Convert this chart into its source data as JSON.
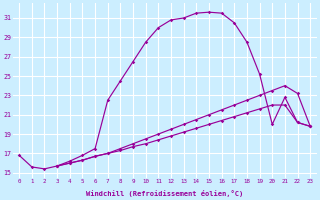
{
  "xlabel": "Windchill (Refroidissement éolien,°C)",
  "bg_color": "#cceeff",
  "grid_color": "#ffffff",
  "line_color": "#990099",
  "xlim": [
    -0.5,
    23.5
  ],
  "ylim": [
    14.5,
    32.5
  ],
  "xticks": [
    0,
    1,
    2,
    3,
    4,
    5,
    6,
    7,
    8,
    9,
    10,
    11,
    12,
    13,
    14,
    15,
    16,
    17,
    18,
    19,
    20,
    21,
    22,
    23
  ],
  "yticks": [
    15,
    17,
    19,
    21,
    23,
    25,
    27,
    29,
    31
  ],
  "series0_x": [
    0,
    1,
    2,
    3,
    4,
    5,
    6,
    7,
    8,
    9,
    10,
    11,
    12,
    13,
    14,
    15,
    16,
    17,
    18,
    19,
    20,
    21,
    22,
    23
  ],
  "series0_y": [
    16.8,
    15.6,
    15.4,
    15.7,
    16.2,
    16.8,
    17.5,
    22.5,
    24.5,
    26.5,
    28.5,
    30.0,
    30.8,
    31.0,
    31.5,
    31.6,
    31.5,
    30.5,
    28.5,
    25.2,
    20.0,
    22.8,
    20.2,
    19.8
  ],
  "series1_x": [
    3,
    4,
    5,
    6,
    7,
    8,
    9,
    10,
    11,
    12,
    13,
    14,
    15,
    16,
    17,
    18,
    19,
    20,
    21,
    22,
    23
  ],
  "series1_y": [
    15.7,
    16.0,
    16.3,
    16.7,
    17.0,
    17.3,
    17.7,
    18.0,
    18.4,
    18.8,
    19.2,
    19.6,
    20.0,
    20.4,
    20.8,
    21.2,
    21.6,
    22.0,
    22.0,
    20.2,
    19.8
  ],
  "series2_x": [
    3,
    4,
    5,
    6,
    7,
    8,
    9,
    10,
    11,
    12,
    13,
    14,
    15,
    16,
    17,
    18,
    19,
    20,
    21,
    22,
    23
  ],
  "series2_y": [
    15.7,
    16.0,
    16.3,
    16.7,
    17.0,
    17.5,
    18.0,
    18.5,
    19.0,
    19.5,
    20.0,
    20.5,
    21.0,
    21.5,
    22.0,
    22.5,
    23.0,
    23.5,
    24.0,
    23.2,
    19.8
  ]
}
